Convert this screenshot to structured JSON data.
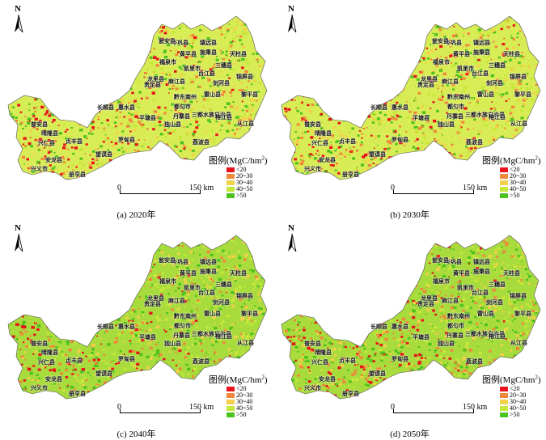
{
  "north_label": "N",
  "legend": {
    "title_main": "图例(MgC/hm",
    "title_sup": "2",
    "title_end": ")",
    "classes": [
      {
        "label": "<20",
        "color": "#e8141b"
      },
      {
        "label": "20~30",
        "color": "#f0883c"
      },
      {
        "label": "30~40",
        "color": "#f5d04a"
      },
      {
        "label": "40~50",
        "color": "#c6e83a"
      },
      {
        "label": ">50",
        "color": "#4cc21f"
      }
    ]
  },
  "scale": {
    "left_label": "0",
    "right_label": "150 km"
  },
  "panels": [
    {
      "caption": "(a) 2020年",
      "variant": 0
    },
    {
      "caption": "(b) 2030年",
      "variant": 1
    },
    {
      "caption": "(c) 2040年",
      "variant": 2
    },
    {
      "caption": "(d) 2050年",
      "variant": 3
    }
  ],
  "counties": [
    "岑巩县",
    "镇远县",
    "天柱县",
    "黄平县",
    "施秉县",
    "三穗县",
    "锦屏县",
    "凯里市",
    "剑河县",
    "台江县",
    "瓮安县",
    "福泉市",
    "贵定县",
    "麻江县",
    "雷山县",
    "黔东南州",
    "丹寨县",
    "长顺县",
    "惠水县",
    "平塘县",
    "三都水族自治县",
    "榕江县",
    "黎平县",
    "从江县",
    "独山县",
    "荔波县",
    "罗甸县",
    "晴隆县",
    "普安县",
    "兴仁县",
    "贞丰县",
    "安龙县",
    "望谟县",
    "册亨县",
    "兴义市",
    "龙里县",
    "都匀市"
  ]
}
